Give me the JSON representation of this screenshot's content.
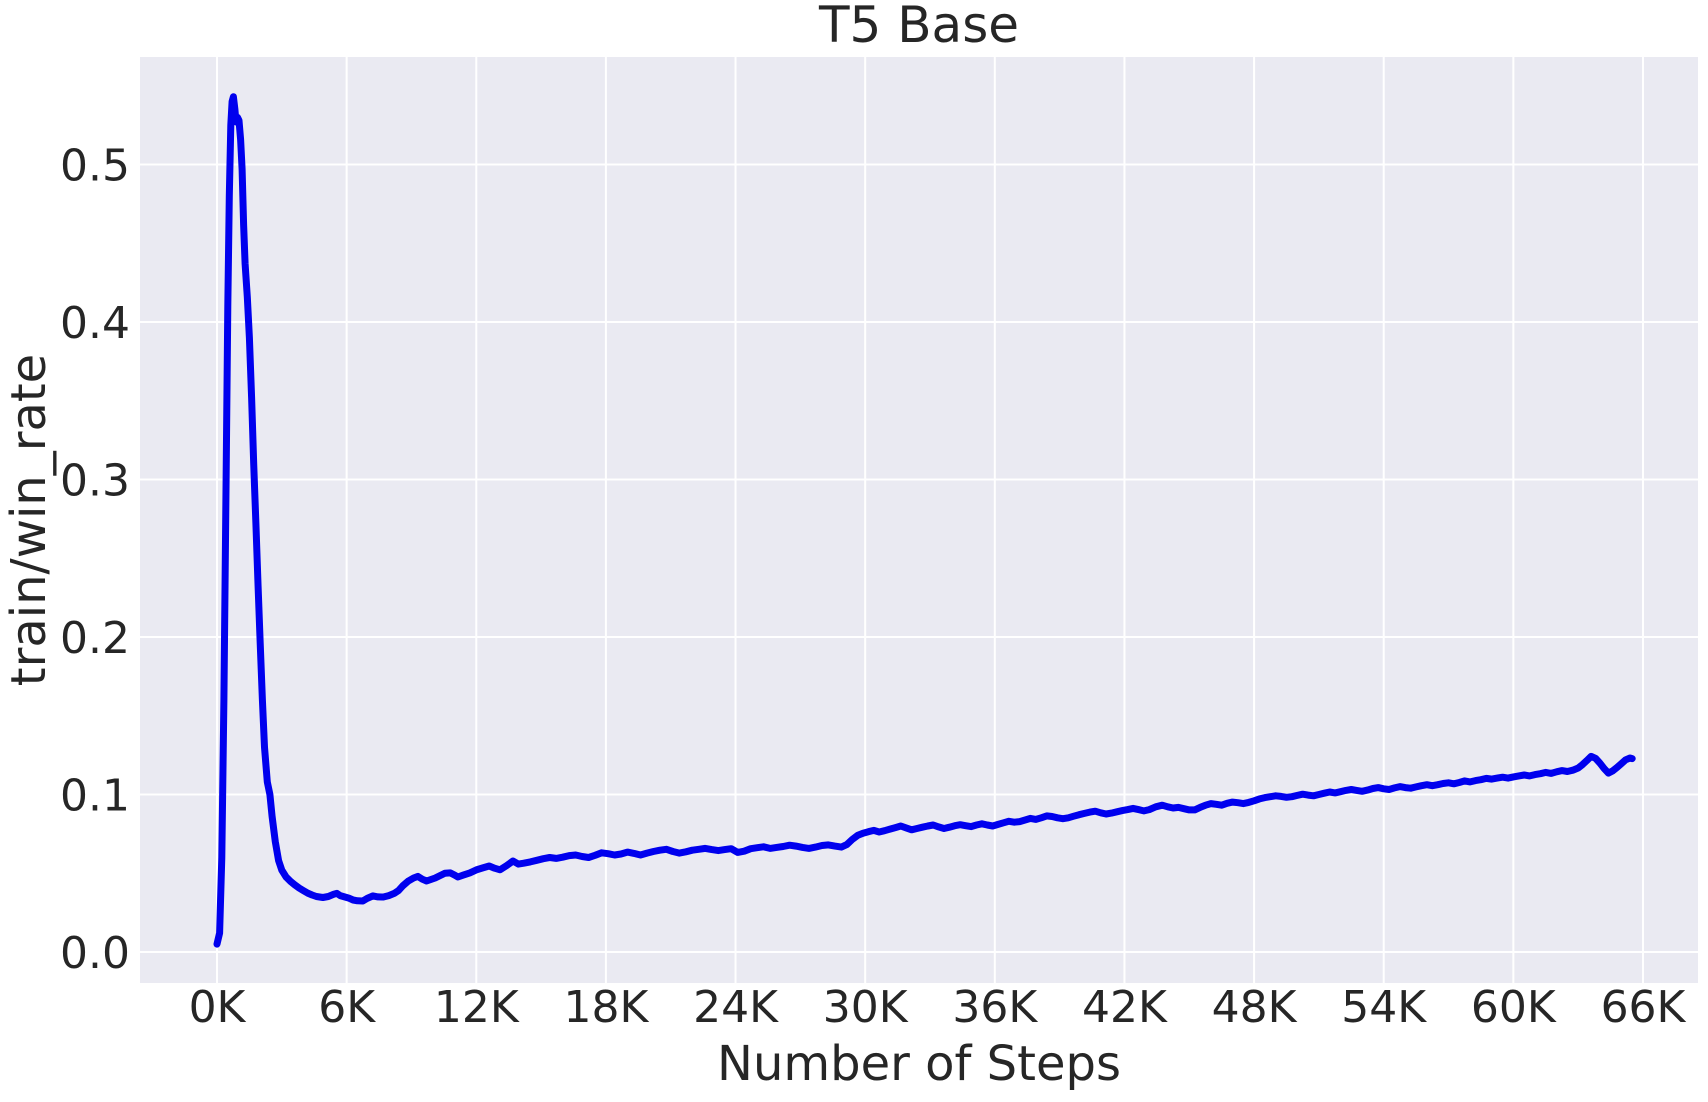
{
  "colors": {
    "page_bg": "#ffffff",
    "plot_bg": "#eaeaf2",
    "grid": "#ffffff",
    "text": "#262626",
    "line": "#0000ee"
  },
  "chart_data": {
    "type": "line",
    "title": "T5 Base",
    "xlabel": "Number of Steps",
    "ylabel": "train/win_rate",
    "grid": true,
    "legend": "none",
    "xlim": [
      -3564,
      68546
    ],
    "ylim": [
      -0.0197,
      0.5683
    ],
    "x_ticks": {
      "values": [
        0,
        6000,
        12000,
        18000,
        24000,
        30000,
        36000,
        42000,
        48000,
        54000,
        60000,
        66000
      ],
      "labels": [
        "0K",
        "6K",
        "12K",
        "18K",
        "24K",
        "30K",
        "36K",
        "42K",
        "48K",
        "54K",
        "60K",
        "66K"
      ]
    },
    "y_ticks": {
      "values": [
        0.0,
        0.1,
        0.2,
        0.3,
        0.4,
        0.5
      ],
      "labels": [
        "0.0",
        "0.1",
        "0.2",
        "0.3",
        "0.4",
        "0.5"
      ]
    },
    "series": [
      {
        "name": "train/win_rate",
        "color": "#0000ee",
        "line_width": 7,
        "points": [
          [
            0,
            0.005
          ],
          [
            120,
            0.012
          ],
          [
            220,
            0.06
          ],
          [
            320,
            0.16
          ],
          [
            420,
            0.3
          ],
          [
            500,
            0.41
          ],
          [
            570,
            0.48
          ],
          [
            640,
            0.525
          ],
          [
            700,
            0.54
          ],
          [
            760,
            0.543
          ],
          [
            830,
            0.535
          ],
          [
            880,
            0.527
          ],
          [
            950,
            0.53
          ],
          [
            1020,
            0.528
          ],
          [
            1090,
            0.516
          ],
          [
            1160,
            0.497
          ],
          [
            1230,
            0.462
          ],
          [
            1300,
            0.437
          ],
          [
            1400,
            0.416
          ],
          [
            1500,
            0.39
          ],
          [
            1600,
            0.352
          ],
          [
            1700,
            0.31
          ],
          [
            1800,
            0.272
          ],
          [
            1900,
            0.232
          ],
          [
            2000,
            0.196
          ],
          [
            2100,
            0.16
          ],
          [
            2200,
            0.13
          ],
          [
            2330,
            0.108
          ],
          [
            2450,
            0.1
          ],
          [
            2550,
            0.086
          ],
          [
            2700,
            0.07
          ],
          [
            2850,
            0.058
          ],
          [
            3000,
            0.052
          ],
          [
            3200,
            0.0476
          ],
          [
            3400,
            0.0448
          ],
          [
            3600,
            0.0426
          ],
          [
            3800,
            0.0406
          ],
          [
            4000,
            0.039
          ],
          [
            4200,
            0.0374
          ],
          [
            4400,
            0.0362
          ],
          [
            4600,
            0.0352
          ],
          [
            4900,
            0.0346
          ],
          [
            5150,
            0.0352
          ],
          [
            5400,
            0.0366
          ],
          [
            5550,
            0.0372
          ],
          [
            5700,
            0.0358
          ],
          [
            5900,
            0.035
          ],
          [
            6100,
            0.0342
          ],
          [
            6300,
            0.033
          ],
          [
            6500,
            0.0325
          ],
          [
            6750,
            0.0324
          ],
          [
            6950,
            0.034
          ],
          [
            7220,
            0.0356
          ],
          [
            7450,
            0.035
          ],
          [
            7700,
            0.0349
          ],
          [
            7950,
            0.0358
          ],
          [
            8200,
            0.0372
          ],
          [
            8400,
            0.039
          ],
          [
            8600,
            0.042
          ],
          [
            8850,
            0.045
          ],
          [
            9100,
            0.047
          ],
          [
            9300,
            0.048
          ],
          [
            9500,
            0.0462
          ],
          [
            9700,
            0.0451
          ],
          [
            9900,
            0.046
          ],
          [
            10100,
            0.047
          ],
          [
            10300,
            0.0483
          ],
          [
            10550,
            0.05
          ],
          [
            10800,
            0.0502
          ],
          [
            11000,
            0.0488
          ],
          [
            11150,
            0.0476
          ],
          [
            11400,
            0.0488
          ],
          [
            11700,
            0.0502
          ],
          [
            12000,
            0.0521
          ],
          [
            12300,
            0.0534
          ],
          [
            12600,
            0.0546
          ],
          [
            12850,
            0.0532
          ],
          [
            13100,
            0.0522
          ],
          [
            13400,
            0.0548
          ],
          [
            13700,
            0.0578
          ],
          [
            13950,
            0.0558
          ],
          [
            14200,
            0.0564
          ],
          [
            14500,
            0.0572
          ],
          [
            14800,
            0.0582
          ],
          [
            15100,
            0.0592
          ],
          [
            15400,
            0.06
          ],
          [
            15700,
            0.0594
          ],
          [
            16000,
            0.0602
          ],
          [
            16300,
            0.0612
          ],
          [
            16600,
            0.0616
          ],
          [
            16900,
            0.0606
          ],
          [
            17200,
            0.06
          ],
          [
            17500,
            0.0614
          ],
          [
            17800,
            0.063
          ],
          [
            18100,
            0.0624
          ],
          [
            18400,
            0.0616
          ],
          [
            18700,
            0.0622
          ],
          [
            19000,
            0.0634
          ],
          [
            19300,
            0.0626
          ],
          [
            19600,
            0.0616
          ],
          [
            19900,
            0.0628
          ],
          [
            20200,
            0.0638
          ],
          [
            20500,
            0.0646
          ],
          [
            20800,
            0.0652
          ],
          [
            21100,
            0.0638
          ],
          [
            21400,
            0.0628
          ],
          [
            21700,
            0.0636
          ],
          [
            22000,
            0.0646
          ],
          [
            22300,
            0.0652
          ],
          [
            22600,
            0.0658
          ],
          [
            22900,
            0.065
          ],
          [
            23200,
            0.0644
          ],
          [
            23500,
            0.065
          ],
          [
            23800,
            0.0656
          ],
          [
            24100,
            0.0632
          ],
          [
            24400,
            0.064
          ],
          [
            24700,
            0.0656
          ],
          [
            25000,
            0.0662
          ],
          [
            25300,
            0.0668
          ],
          [
            25600,
            0.0658
          ],
          [
            25900,
            0.0664
          ],
          [
            26200,
            0.067
          ],
          [
            26500,
            0.0678
          ],
          [
            26800,
            0.0672
          ],
          [
            27100,
            0.0664
          ],
          [
            27400,
            0.0658
          ],
          [
            27700,
            0.0666
          ],
          [
            28000,
            0.0676
          ],
          [
            28300,
            0.068
          ],
          [
            28600,
            0.0672
          ],
          [
            28900,
            0.0666
          ],
          [
            29150,
            0.0682
          ],
          [
            29400,
            0.0714
          ],
          [
            29650,
            0.074
          ],
          [
            29900,
            0.0754
          ],
          [
            30150,
            0.0764
          ],
          [
            30400,
            0.0772
          ],
          [
            30650,
            0.0762
          ],
          [
            30900,
            0.077
          ],
          [
            31150,
            0.078
          ],
          [
            31400,
            0.079
          ],
          [
            31650,
            0.08
          ],
          [
            31900,
            0.0788
          ],
          [
            32150,
            0.0776
          ],
          [
            32400,
            0.0784
          ],
          [
            32650,
            0.0792
          ],
          [
            32900,
            0.08
          ],
          [
            33150,
            0.0806
          ],
          [
            33400,
            0.0794
          ],
          [
            33650,
            0.0784
          ],
          [
            33900,
            0.0792
          ],
          [
            34150,
            0.0802
          ],
          [
            34400,
            0.0808
          ],
          [
            34650,
            0.0802
          ],
          [
            34900,
            0.0796
          ],
          [
            35150,
            0.0806
          ],
          [
            35400,
            0.0814
          ],
          [
            35650,
            0.0806
          ],
          [
            35900,
            0.08
          ],
          [
            36150,
            0.081
          ],
          [
            36400,
            0.082
          ],
          [
            36650,
            0.083
          ],
          [
            36900,
            0.0824
          ],
          [
            37150,
            0.0828
          ],
          [
            37400,
            0.0838
          ],
          [
            37650,
            0.0848
          ],
          [
            37900,
            0.0842
          ],
          [
            38150,
            0.0852
          ],
          [
            38400,
            0.0864
          ],
          [
            38650,
            0.086
          ],
          [
            38900,
            0.0852
          ],
          [
            39150,
            0.0846
          ],
          [
            39400,
            0.0852
          ],
          [
            39650,
            0.0862
          ],
          [
            39900,
            0.0872
          ],
          [
            40150,
            0.088
          ],
          [
            40400,
            0.0888
          ],
          [
            40650,
            0.0894
          ],
          [
            40900,
            0.0884
          ],
          [
            41150,
            0.0876
          ],
          [
            41400,
            0.0882
          ],
          [
            41650,
            0.089
          ],
          [
            41900,
            0.0898
          ],
          [
            42150,
            0.0904
          ],
          [
            42400,
            0.0912
          ],
          [
            42650,
            0.0904
          ],
          [
            42900,
            0.0896
          ],
          [
            43150,
            0.0904
          ],
          [
            43450,
            0.0922
          ],
          [
            43750,
            0.0932
          ],
          [
            44000,
            0.0922
          ],
          [
            44250,
            0.0914
          ],
          [
            44500,
            0.0918
          ],
          [
            44750,
            0.091
          ],
          [
            45000,
            0.0902
          ],
          [
            45250,
            0.0902
          ],
          [
            45500,
            0.0918
          ],
          [
            45750,
            0.0932
          ],
          [
            46000,
            0.0942
          ],
          [
            46250,
            0.0938
          ],
          [
            46500,
            0.0932
          ],
          [
            46750,
            0.0944
          ],
          [
            47000,
            0.0952
          ],
          [
            47250,
            0.0948
          ],
          [
            47500,
            0.0942
          ],
          [
            47750,
            0.095
          ],
          [
            48000,
            0.096
          ],
          [
            48250,
            0.0972
          ],
          [
            48500,
            0.098
          ],
          [
            48750,
            0.0986
          ],
          [
            49000,
            0.0992
          ],
          [
            49250,
            0.0988
          ],
          [
            49500,
            0.0982
          ],
          [
            49750,
            0.0986
          ],
          [
            50000,
            0.0994
          ],
          [
            50250,
            0.1002
          ],
          [
            50500,
            0.0996
          ],
          [
            50750,
            0.0992
          ],
          [
            51000,
            0.1
          ],
          [
            51250,
            0.1008
          ],
          [
            51500,
            0.1016
          ],
          [
            51750,
            0.101
          ],
          [
            52000,
            0.1018
          ],
          [
            52250,
            0.1026
          ],
          [
            52500,
            0.1032
          ],
          [
            52750,
            0.1026
          ],
          [
            53000,
            0.102
          ],
          [
            53250,
            0.1028
          ],
          [
            53500,
            0.1038
          ],
          [
            53750,
            0.1044
          ],
          [
            54000,
            0.1036
          ],
          [
            54250,
            0.1032
          ],
          [
            54500,
            0.1042
          ],
          [
            54750,
            0.105
          ],
          [
            55000,
            0.1044
          ],
          [
            55250,
            0.104
          ],
          [
            55500,
            0.1048
          ],
          [
            55750,
            0.1056
          ],
          [
            56000,
            0.1062
          ],
          [
            56250,
            0.1056
          ],
          [
            56500,
            0.1062
          ],
          [
            56750,
            0.107
          ],
          [
            57000,
            0.1074
          ],
          [
            57250,
            0.1068
          ],
          [
            57500,
            0.1076
          ],
          [
            57750,
            0.1086
          ],
          [
            58000,
            0.108
          ],
          [
            58250,
            0.1088
          ],
          [
            58500,
            0.1094
          ],
          [
            58750,
            0.1102
          ],
          [
            59000,
            0.1098
          ],
          [
            59250,
            0.1104
          ],
          [
            59500,
            0.111
          ],
          [
            59750,
            0.1104
          ],
          [
            60000,
            0.1112
          ],
          [
            60250,
            0.1118
          ],
          [
            60500,
            0.1124
          ],
          [
            60750,
            0.1118
          ],
          [
            61000,
            0.1126
          ],
          [
            61250,
            0.1132
          ],
          [
            61500,
            0.114
          ],
          [
            61750,
            0.1134
          ],
          [
            62000,
            0.1144
          ],
          [
            62250,
            0.1152
          ],
          [
            62500,
            0.1146
          ],
          [
            62750,
            0.1154
          ],
          [
            63000,
            0.1168
          ],
          [
            63200,
            0.119
          ],
          [
            63400,
            0.1215
          ],
          [
            63600,
            0.1242
          ],
          [
            63800,
            0.123
          ],
          [
            64000,
            0.12
          ],
          [
            64200,
            0.1165
          ],
          [
            64400,
            0.1136
          ],
          [
            64600,
            0.115
          ],
          [
            64800,
            0.1172
          ],
          [
            65000,
            0.1196
          ],
          [
            65200,
            0.122
          ],
          [
            65400,
            0.1232
          ],
          [
            65500,
            0.1228
          ]
        ]
      }
    ]
  }
}
